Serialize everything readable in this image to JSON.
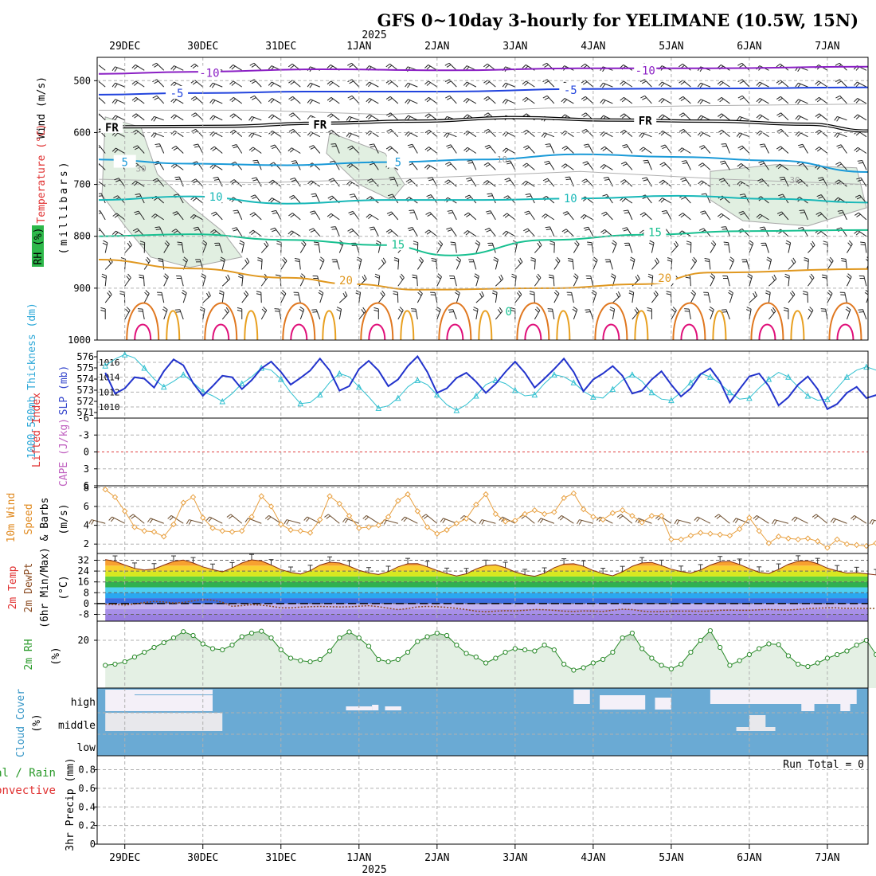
{
  "title": "GFS 0~10day 3-hourly for YELIMANE (10.5W, 15N)",
  "chart_data": {
    "type": "meteogram",
    "year_label": "2025",
    "x_range_hours": [
      -8.5,
      228.5
    ],
    "date_ticks": [
      {
        "label": "29DEC",
        "h": 0
      },
      {
        "label": "30DEC",
        "h": 24
      },
      {
        "label": "31DEC",
        "h": 48
      },
      {
        "label": "1JAN",
        "h": 72
      },
      {
        "label": "2JAN",
        "h": 96
      },
      {
        "label": "3JAN",
        "h": 120
      },
      {
        "label": "4JAN",
        "h": 144
      },
      {
        "label": "5JAN",
        "h": 168
      },
      {
        "label": "6JAN",
        "h": 192
      },
      {
        "label": "7JAN",
        "h": 216
      }
    ],
    "panels": {
      "upper_air": {
        "labels": {
          "wind": "Wind (m/s)",
          "temp": "Temperature (°C)",
          "rh": "RH (%)",
          "pressure": "(millibars)"
        },
        "pressure_ticks": [
          500,
          600,
          700,
          800,
          900,
          1000
        ],
        "p_range": [
          455,
          1000
        ],
        "freezing_label": "FR",
        "contour_labels": [
          "-10",
          "-5",
          "5",
          "10",
          "15",
          "20",
          "10",
          "30",
          "0"
        ],
        "isotherms": [
          {
            "label": "-10",
            "color": "#8a1fc4",
            "points": [
              [
                -8.5,
                487
              ],
              [
                20,
                483
              ],
              [
                60,
                478
              ],
              [
                100,
                480
              ],
              [
                140,
                476
              ],
              [
                180,
                476
              ],
              [
                228.5,
                473
              ]
            ]
          },
          {
            "label": "-5",
            "color": "#2244dd",
            "points": [
              [
                -8.5,
                527
              ],
              [
                20,
                524
              ],
              [
                60,
                521
              ],
              [
                100,
                521
              ],
              [
                140,
                516
              ],
              [
                180,
                515
              ],
              [
                228.5,
                513
              ]
            ]
          },
          {
            "label": "FR",
            "color": "#000000",
            "points": [
              [
                -8.5,
                596
              ],
              [
                0,
                589
              ],
              [
                30,
                588
              ],
              [
                60,
                582
              ],
              [
                90,
                578
              ],
              [
                120,
                571
              ],
              [
                150,
                576
              ],
              [
                180,
                578
              ],
              [
                210,
                584
              ],
              [
                228.5,
                597
              ]
            ]
          },
          {
            "label": "5",
            "color": "#1a9ad8",
            "points": [
              [
                -8.5,
                652
              ],
              [
                20,
                660
              ],
              [
                50,
                663
              ],
              [
                80,
                657
              ],
              [
                110,
                652
              ],
              [
                140,
                642
              ],
              [
                170,
                647
              ],
              [
                200,
                654
              ],
              [
                228.5,
                676
              ]
            ]
          },
          {
            "label": "10",
            "color": "#18b8b8",
            "points": [
              [
                -8.5,
                730
              ],
              [
                20,
                723
              ],
              [
                50,
                737
              ],
              [
                80,
                730
              ],
              [
                110,
                730
              ],
              [
                140,
                727
              ],
              [
                170,
                722
              ],
              [
                200,
                728
              ],
              [
                228.5,
                735
              ]
            ]
          },
          {
            "label": "15",
            "color": "#18c090",
            "points": [
              [
                -8.5,
                800
              ],
              [
                20,
                796
              ],
              [
                50,
                807
              ],
              [
                80,
                817
              ],
              [
                100,
                837
              ],
              [
                130,
                807
              ],
              [
                160,
                797
              ],
              [
                190,
                790
              ],
              [
                228.5,
                788
              ]
            ]
          },
          {
            "label": "20",
            "color": "#e09820",
            "points": [
              [
                -8.5,
                845
              ],
              [
                20,
                862
              ],
              [
                50,
                880
              ],
              [
                70,
                892
              ],
              [
                90,
                903
              ],
              [
                130,
                900
              ],
              [
                160,
                892
              ],
              [
                180,
                870
              ],
              [
                228.5,
                863
              ]
            ]
          }
        ],
        "rh_blobs": [
          {
            "label": "30",
            "points": [
              [
                -6,
                570
              ],
              [
                5,
                590
              ],
              [
                10,
                680
              ],
              [
                20,
                740
              ],
              [
                30,
                790
              ],
              [
                36,
                840
              ],
              [
                20,
                860
              ],
              [
                8,
                840
              ],
              [
                0,
                780
              ],
              [
                -7,
                720
              ]
            ]
          },
          {
            "label": "30",
            "points": [
              [
                63,
                600
              ],
              [
                80,
                640
              ],
              [
                86,
                700
              ],
              [
                82,
                730
              ],
              [
                72,
                700
              ],
              [
                62,
                640
              ]
            ]
          },
          {
            "label": "30",
            "points": [
              [
                180,
                675
              ],
              [
                200,
                662
              ],
              [
                225,
                668
              ],
              [
                228,
                745
              ],
              [
                210,
                780
              ],
              [
                190,
                770
              ],
              [
                180,
                730
              ]
            ]
          }
        ]
      },
      "slp": {
        "labels": {
          "thickness": "1000-500mb Thickness (dm)",
          "slp": "SLP (mb)"
        },
        "left_ticks": [
          576,
          575,
          574,
          573,
          572,
          571
        ],
        "right_ticks": [
          1016,
          1014,
          1012,
          1010
        ],
        "thickness_range": [
          570.5,
          576.5
        ],
        "slp_range": [
          1008.5,
          1017.5
        ],
        "thickness": [
          575.2,
          575.8,
          576.2,
          575.9,
          575.0,
          574.0,
          573.3,
          573.8,
          574.4,
          573.7,
          572.9,
          572.5,
          572.0,
          572.7,
          573.6,
          574.2,
          575.0,
          574.8,
          574.0,
          572.8,
          571.8,
          571.9,
          572.6,
          573.7,
          574.5,
          574.2,
          573.3,
          572.4,
          571.4,
          571.6,
          572.3,
          573.3,
          573.9,
          573.5,
          572.6,
          571.7,
          571.2,
          571.7,
          572.5,
          573.5,
          573.9,
          573.6,
          573.0,
          572.5,
          572.6,
          573.6,
          574.4,
          574.2,
          573.7,
          572.9,
          572.4,
          572.3,
          573.1,
          573.9,
          574.4,
          573.8,
          572.8,
          572.2,
          572.1,
          572.8,
          573.7,
          574.5,
          574.2,
          573.6,
          572.8,
          572.2,
          572.3,
          573.2,
          574.0,
          574.6,
          574.2,
          573.3,
          572.5,
          572.1,
          572.2,
          573.2,
          574.2,
          574.8,
          575.1,
          574.8,
          574.1
        ],
        "slp": [
          1014.6,
          1011.8,
          1012.5,
          1014.0,
          1013.8,
          1012.6,
          1014.8,
          1016.4,
          1015.6,
          1013.2,
          1011.5,
          1012.8,
          1014.2,
          1014.0,
          1012.4,
          1013.6,
          1015.2,
          1016.1,
          1014.7,
          1013.0,
          1013.9,
          1014.9,
          1016.5,
          1014.9,
          1012.2,
          1012.8,
          1015.1,
          1016.2,
          1014.9,
          1012.8,
          1013.7,
          1015.5,
          1016.8,
          1014.7,
          1011.9,
          1012.5,
          1013.9,
          1014.6,
          1013.4,
          1011.9,
          1013.1,
          1014.7,
          1016.1,
          1014.6,
          1012.6,
          1013.8,
          1015.1,
          1016.5,
          1014.7,
          1012.1,
          1013.7,
          1014.5,
          1015.5,
          1014.2,
          1011.8,
          1012.2,
          1013.7,
          1014.8,
          1013.0,
          1011.4,
          1012.5,
          1014.4,
          1015.2,
          1013.4,
          1010.6,
          1012.4,
          1014.1,
          1014.5,
          1012.8,
          1010.2,
          1011.3,
          1013.0,
          1014.1,
          1012.4,
          1009.7,
          1010.4,
          1011.9,
          1012.7,
          1011.2,
          1011.6,
          1012.2
        ]
      },
      "cape": {
        "labels": {
          "li": "Lifted Index",
          "cape": "CAPE (J/kg)"
        },
        "li_ticks": [
          "-6",
          "-3",
          "0",
          "3",
          "6"
        ],
        "li_range": [
          -6,
          6
        ],
        "li_zero_line": 0
      },
      "wind10m": {
        "labels": {
          "main": "10m Wind",
          "speed": "Speed",
          "barbs": "& Barbs",
          "unit": "(m/s)"
        },
        "ticks": [
          8,
          6,
          4,
          2
        ],
        "range": [
          1,
          8.2
        ],
        "speed": [
          7.8,
          7.0,
          5.5,
          3.8,
          3.4,
          3.3,
          2.8,
          4.1,
          6.4,
          7.0,
          4.8,
          3.7,
          3.4,
          3.3,
          3.4,
          4.9,
          7.1,
          6.0,
          4.1,
          3.5,
          3.4,
          3.2,
          4.6,
          7.1,
          6.3,
          5.0,
          3.7,
          3.8,
          4.0,
          4.9,
          6.6,
          7.3,
          5.5,
          3.8,
          3.1,
          3.5,
          4.2,
          4.7,
          6.2,
          7.3,
          5.2,
          4.4,
          4.5,
          5.2,
          5.6,
          5.2,
          5.4,
          6.9,
          7.4,
          5.7,
          4.9,
          4.6,
          5.3,
          5.6,
          5.0,
          4.3,
          5.0,
          5.0,
          2.5,
          2.5,
          2.9,
          3.2,
          3.1,
          3.0,
          2.9,
          3.6,
          4.8,
          3.4,
          2.1,
          2.8,
          2.6,
          2.5,
          2.6,
          2.3,
          1.6,
          2.5,
          2.0,
          1.9,
          1.8,
          2.1,
          2.7
        ]
      },
      "temp2m": {
        "labels": {
          "temp": "2m Temp",
          "dewpt": "2m DewPt",
          "minmax": "(6hr Min/Max)",
          "unit": "(°C)"
        },
        "ticks": [
          32,
          24,
          16,
          8,
          0,
          -8
        ],
        "range": [
          -13,
          37
        ],
        "temp": [
          32.5,
          31.2,
          28.5,
          26.0,
          24.8,
          25.5,
          28.4,
          31.2,
          32.1,
          30.0,
          27.1,
          25.2,
          23.4,
          26.3,
          30.0,
          32.3,
          31.5,
          28.5,
          25.1,
          23.0,
          21.8,
          24.3,
          28.4,
          30.5,
          30.0,
          27.6,
          24.6,
          22.6,
          21.5,
          23.6,
          27.1,
          29.4,
          29.5,
          27.2,
          24.4,
          22.2,
          20.4,
          22.0,
          25.6,
          28.1,
          28.6,
          26.5,
          23.4,
          21.3,
          20.2,
          22.4,
          26.5,
          29.1,
          29.4,
          27.6,
          24.4,
          22.1,
          20.5,
          23.5,
          27.5,
          30.0,
          30.4,
          28.1,
          25.4,
          23.7,
          22.5,
          24.8,
          28.4,
          30.8,
          31.2,
          28.9,
          25.8,
          23.1,
          22.2,
          25.3,
          29.0,
          31.3,
          31.6,
          29.4,
          26.2,
          24.1,
          22.5,
          22.8,
          22.0,
          21.2,
          20.5
        ],
        "dewpt": [
          -0.5,
          -0.7,
          -1.0,
          -0.4,
          0.8,
          1.6,
          1.2,
          0.4,
          0.8,
          2.0,
          3.0,
          2.5,
          1.0,
          -2.0,
          -1.5,
          -0.8,
          -1.2,
          -2.0,
          -3.1,
          -3.2,
          -2.6,
          -2.3,
          -2.1,
          -2.3,
          -2.5,
          -2.4,
          -2.0,
          -1.6,
          -2.3,
          -3.4,
          -4.5,
          -3.7,
          -2.4,
          -2.1,
          -2.3,
          -2.8,
          -3.5,
          -4.5,
          -5.6,
          -6.0,
          -5.6,
          -5.3,
          -5.4,
          -5.0,
          -4.4,
          -4.6,
          -5.0,
          -5.6,
          -5.8,
          -5.4,
          -5.5,
          -5.8,
          -4.9,
          -4.2,
          -4.5,
          -5.5,
          -6.0,
          -5.9,
          -5.6,
          -5.6,
          -5.6,
          -5.7,
          -5.5,
          -5.0,
          -4.8,
          -5.0,
          -5.0,
          -4.6,
          -4.4,
          -4.6,
          -4.8,
          -4.3,
          -3.7,
          -3.4,
          -3.2,
          -3.2,
          -3.6,
          -3.4,
          -3.6,
          -3.6,
          -3.5
        ]
      },
      "rh2m": {
        "labels": {
          "main": "2m RH",
          "unit": "(%)"
        },
        "ticks": [
          20
        ],
        "range": [
          0,
          28
        ],
        "values": [
          9.5,
          10.0,
          11.0,
          13.0,
          15.0,
          17.0,
          19.0,
          21.0,
          23.6,
          22.0,
          18.5,
          16.5,
          16.0,
          18.0,
          21.5,
          23.0,
          23.8,
          21.0,
          16.0,
          12.5,
          11.5,
          11.0,
          12.0,
          15.5,
          21.0,
          23.5,
          21.0,
          17.5,
          12.0,
          11.0,
          12.0,
          15.0,
          19.5,
          21.5,
          23.0,
          22.0,
          18.0,
          14.5,
          13.0,
          10.5,
          12.5,
          15.0,
          16.5,
          16.0,
          15.5,
          18.0,
          16.0,
          10.0,
          7.5,
          8.5,
          10.5,
          12.0,
          15.0,
          21.0,
          23.0,
          16.5,
          12.5,
          9.5,
          8.0,
          10.0,
          15.0,
          20.0,
          24.0,
          17.0,
          9.5,
          11.5,
          14.0,
          16.5,
          18.5,
          18.2,
          13.5,
          10.0,
          9.0,
          10.5,
          12.5,
          14.0,
          15.5,
          18.0,
          20.0,
          14.0,
          9.0
        ]
      },
      "cloud": {
        "labels": {
          "main": "Cloud Cover",
          "unit": "(%)"
        },
        "levels": [
          "high",
          "middle",
          "low"
        ]
      },
      "precip": {
        "labels": {
          "main": "3hr Precip (mm)",
          "total": "Total / Rain",
          "convective": "Convective"
        },
        "run_total": "Run Total = 0",
        "ticks": [
          "0.8",
          "0.6",
          "0.4",
          "0.2",
          "0"
        ],
        "range": [
          0,
          0.95
        ]
      }
    }
  }
}
